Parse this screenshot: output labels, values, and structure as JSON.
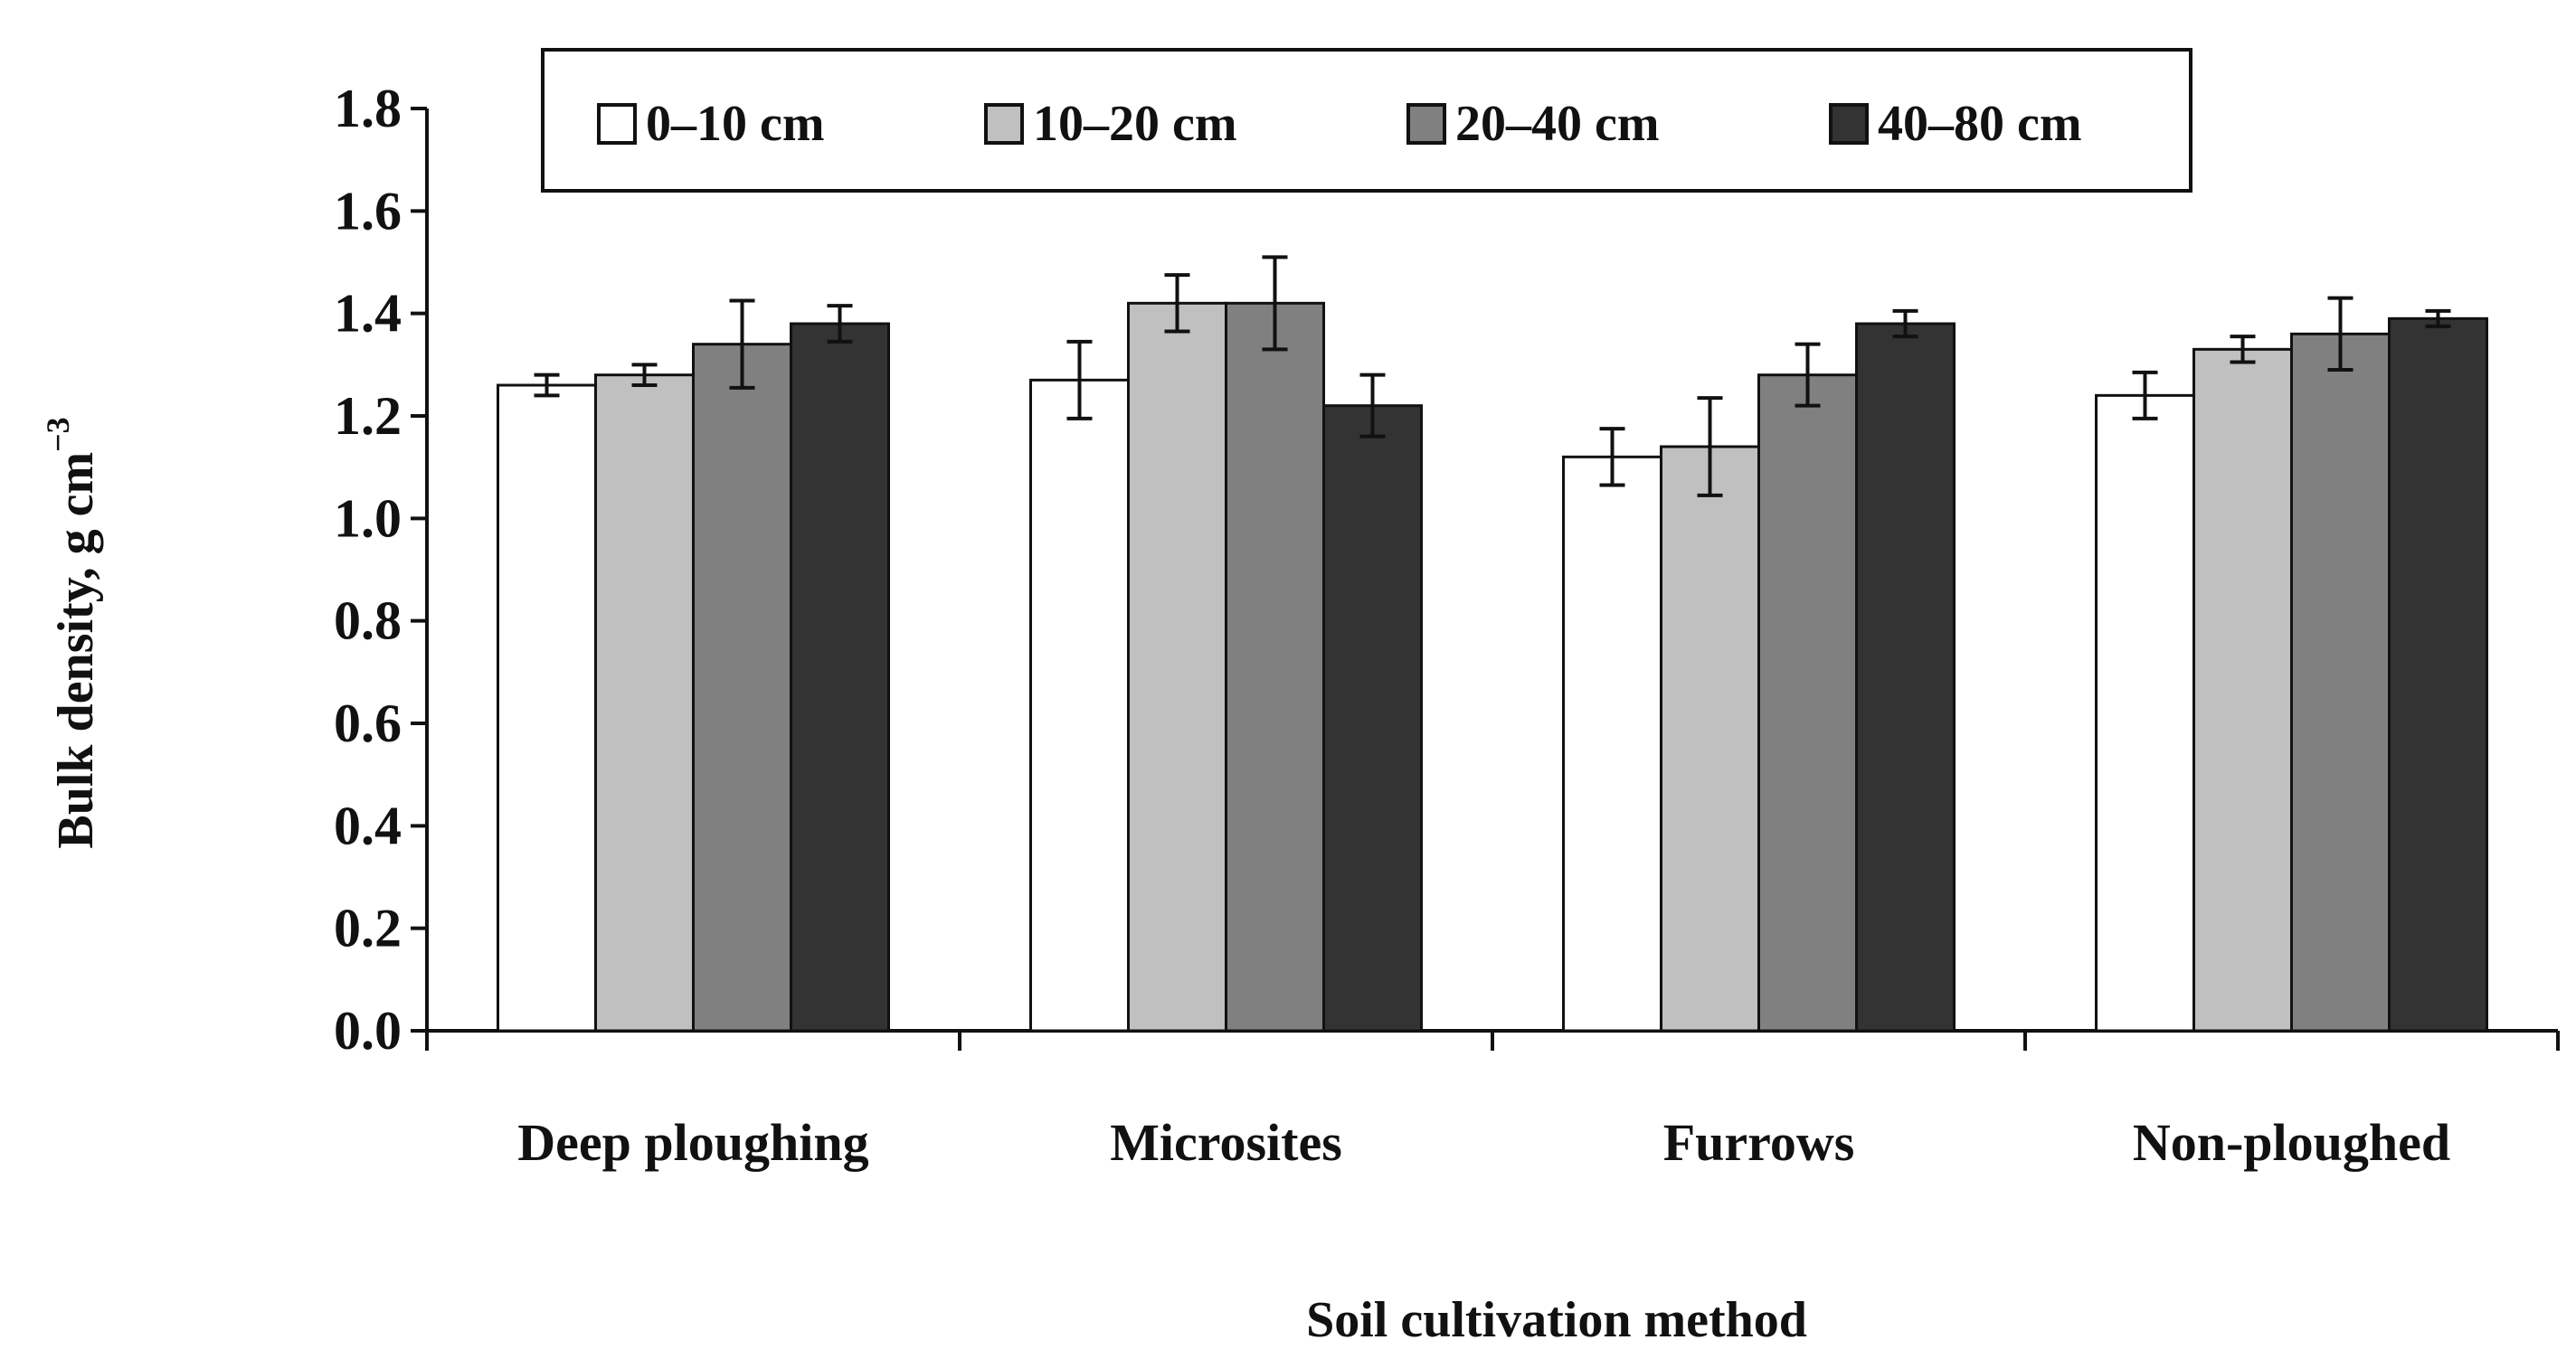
{
  "chart_data": {
    "type": "bar",
    "title": "",
    "xlabel": "Soil cultivation method",
    "ylabel": "Bulk density, g cm",
    "ylabel_superscript": "−3",
    "ylim": [
      0,
      1.8
    ],
    "yticks": [
      "0.0",
      "0.2",
      "0.4",
      "0.6",
      "0.8",
      "1.0",
      "1.2",
      "1.4",
      "1.6",
      "1.8"
    ],
    "ytick_values": [
      0,
      0.2,
      0.4,
      0.6,
      0.8,
      1.0,
      1.2,
      1.4,
      1.6,
      1.8
    ],
    "categories": [
      "Deep ploughing",
      "Microsites",
      "Furrows",
      "Non-ploughed"
    ],
    "legend_position": "top",
    "series": [
      {
        "name": "0–10 cm",
        "color": "#ffffff",
        "values": [
          1.26,
          1.27,
          1.12,
          1.24
        ],
        "errors": [
          0.02,
          0.075,
          0.055,
          0.045
        ]
      },
      {
        "name": "10–20 cm",
        "color": "#c0c0c0",
        "values": [
          1.28,
          1.42,
          1.14,
          1.33
        ],
        "errors": [
          0.02,
          0.055,
          0.095,
          0.025
        ]
      },
      {
        "name": "20–40 cm",
        "color": "#808080",
        "values": [
          1.34,
          1.42,
          1.28,
          1.36
        ],
        "errors": [
          0.085,
          0.09,
          0.06,
          0.07
        ]
      },
      {
        "name": "40–80 cm",
        "color": "#333333",
        "values": [
          1.38,
          1.22,
          1.38,
          1.39
        ],
        "errors": [
          0.035,
          0.06,
          0.025,
          0.015
        ]
      }
    ]
  }
}
